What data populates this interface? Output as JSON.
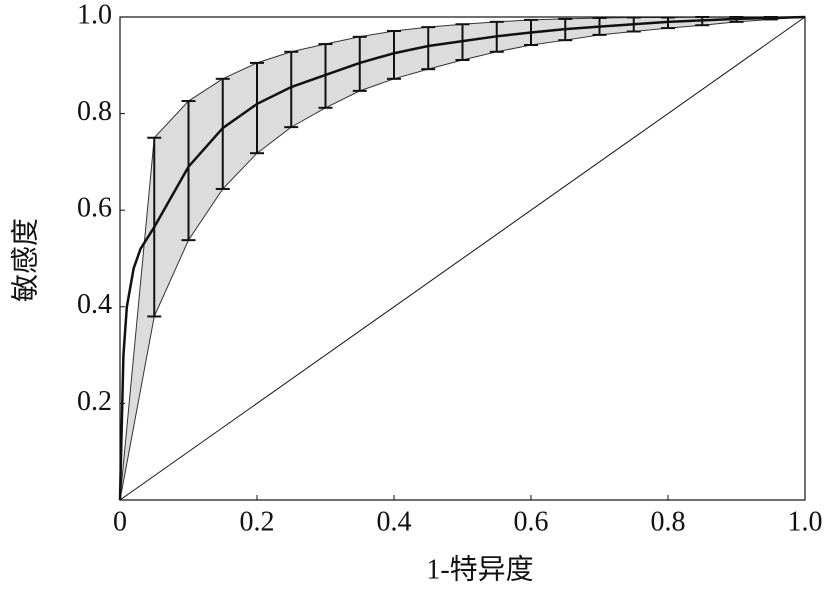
{
  "chart_data": {
    "type": "line",
    "x_label": "1-特异度",
    "y_label": "敏感度",
    "xlim": [
      0,
      1
    ],
    "ylim": [
      0,
      1
    ],
    "xticks": [
      0,
      0.2,
      0.4,
      0.6,
      0.8,
      {
        "value": 1,
        "label": "1.0"
      }
    ],
    "yticks": [
      0.2,
      0.4,
      0.6,
      0.8,
      {
        "value": 1,
        "label": "1.0"
      }
    ],
    "curve": {
      "color": "#111111",
      "x": [
        0,
        0.005,
        0.01,
        0.02,
        0.03,
        0.05,
        0.1,
        0.15,
        0.2,
        0.25,
        0.3,
        0.35,
        0.4,
        0.45,
        0.5,
        0.55,
        0.6,
        0.65,
        0.7,
        0.75,
        0.8,
        0.85,
        0.9,
        0.95,
        1
      ],
      "values": [
        0,
        0.3,
        0.4,
        0.48,
        0.52,
        0.565,
        0.69,
        0.77,
        0.82,
        0.855,
        0.88,
        0.905,
        0.925,
        0.94,
        0.95,
        0.96,
        0.968,
        0.975,
        0.98,
        0.985,
        0.99,
        0.993,
        0.996,
        0.998,
        1
      ]
    },
    "band": {
      "color": "#dcdcdc",
      "x": [
        0,
        0.05,
        0.1,
        0.15,
        0.2,
        0.25,
        0.3,
        0.35,
        0.4,
        0.45,
        0.5,
        0.55,
        0.6,
        0.65,
        0.7,
        0.75,
        0.8,
        0.85,
        0.9,
        0.95,
        1
      ],
      "upper": [
        0,
        0.75,
        0.826,
        0.872,
        0.905,
        0.928,
        0.944,
        0.959,
        0.971,
        0.979,
        0.985,
        0.99,
        0.994,
        0.996,
        0.998,
        0.999,
        0.999,
        1,
        1,
        1,
        1
      ],
      "lower": [
        0,
        0.38,
        0.538,
        0.644,
        0.718,
        0.772,
        0.812,
        0.847,
        0.872,
        0.892,
        0.911,
        0.928,
        0.942,
        0.952,
        0.963,
        0.97,
        0.977,
        0.983,
        0.99,
        0.995,
        1
      ]
    },
    "diagonal": {
      "color": "#111111",
      "x": [
        0,
        1
      ],
      "values": [
        0,
        1
      ]
    }
  }
}
